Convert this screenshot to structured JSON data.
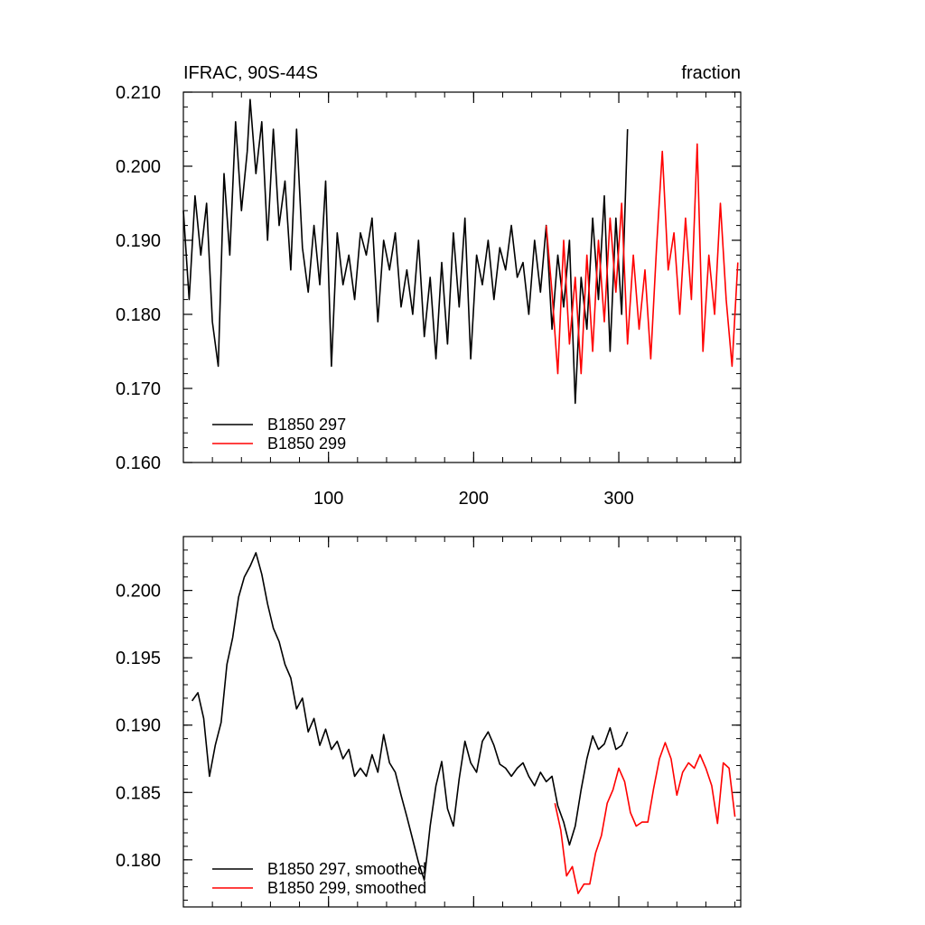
{
  "chart_data": [
    {
      "type": "line",
      "title_left": "IFRAC, 90S-44S",
      "title_right": "fraction",
      "xlim": [
        0,
        384
      ],
      "ylim": [
        0.16,
        0.21
      ],
      "xticks": [
        100,
        200,
        300
      ],
      "xtick_labels": [
        "100",
        "200",
        "300"
      ],
      "yticks": [
        0.16,
        0.17,
        0.18,
        0.19,
        0.2,
        0.21
      ],
      "ytick_labels": [
        "0.160",
        "0.170",
        "0.180",
        "0.190",
        "0.200",
        "0.210"
      ],
      "legend_placement": "lower-left",
      "grid": false,
      "series": [
        {
          "name": "B1850 297",
          "color": "#000000",
          "x": [
            0,
            4,
            8,
            12,
            16,
            20,
            24,
            28,
            32,
            36,
            40,
            44,
            46,
            50,
            54,
            58,
            62,
            66,
            70,
            74,
            78,
            82,
            86,
            90,
            94,
            98,
            102,
            106,
            110,
            114,
            118,
            122,
            126,
            130,
            134,
            138,
            142,
            146,
            150,
            154,
            158,
            162,
            166,
            170,
            174,
            178,
            182,
            186,
            190,
            194,
            198,
            202,
            206,
            210,
            214,
            218,
            222,
            226,
            230,
            234,
            238,
            242,
            246,
            250,
            254,
            258,
            262,
            266,
            270,
            274,
            278,
            282,
            286,
            290,
            294,
            298,
            302,
            306
          ],
          "values": [
            0.194,
            0.182,
            0.196,
            0.188,
            0.195,
            0.179,
            0.173,
            0.199,
            0.188,
            0.206,
            0.194,
            0.202,
            0.209,
            0.199,
            0.206,
            0.19,
            0.205,
            0.192,
            0.198,
            0.186,
            0.205,
            0.189,
            0.183,
            0.192,
            0.184,
            0.198,
            0.173,
            0.191,
            0.184,
            0.188,
            0.182,
            0.191,
            0.188,
            0.193,
            0.179,
            0.19,
            0.186,
            0.191,
            0.181,
            0.186,
            0.18,
            0.19,
            0.177,
            0.185,
            0.174,
            0.187,
            0.176,
            0.191,
            0.181,
            0.193,
            0.174,
            0.188,
            0.184,
            0.19,
            0.182,
            0.189,
            0.186,
            0.192,
            0.185,
            0.187,
            0.18,
            0.19,
            0.183,
            0.192,
            0.178,
            0.188,
            0.181,
            0.19,
            0.168,
            0.185,
            0.178,
            0.193,
            0.182,
            0.196,
            0.175,
            0.193,
            0.18,
            0.205
          ]
        },
        {
          "name": "B1850 299",
          "color": "#ff0000",
          "x": [
            250,
            254,
            258,
            262,
            266,
            270,
            274,
            278,
            282,
            286,
            290,
            294,
            298,
            302,
            306,
            310,
            314,
            318,
            322,
            326,
            330,
            334,
            338,
            342,
            346,
            350,
            354,
            358,
            362,
            366,
            370,
            374,
            378,
            382
          ],
          "values": [
            0.192,
            0.183,
            0.172,
            0.19,
            0.176,
            0.185,
            0.172,
            0.188,
            0.175,
            0.19,
            0.179,
            0.193,
            0.183,
            0.195,
            0.176,
            0.188,
            0.178,
            0.186,
            0.174,
            0.189,
            0.202,
            0.186,
            0.191,
            0.18,
            0.193,
            0.182,
            0.203,
            0.175,
            0.188,
            0.18,
            0.195,
            0.182,
            0.173,
            0.187
          ]
        }
      ]
    },
    {
      "type": "line",
      "xlim": [
        0,
        384
      ],
      "ylim": [
        0.1765,
        0.204
      ],
      "yticks": [
        0.18,
        0.185,
        0.19,
        0.195,
        0.2
      ],
      "ytick_labels": [
        "0.180",
        "0.185",
        "0.190",
        "0.195",
        "0.200"
      ],
      "legend_placement": "lower-left",
      "grid": false,
      "series": [
        {
          "name": "B1850 297, smoothed",
          "color": "#000000",
          "x": [
            6,
            10,
            14,
            18,
            22,
            26,
            30,
            34,
            38,
            42,
            46,
            50,
            54,
            58,
            62,
            66,
            70,
            74,
            78,
            82,
            86,
            90,
            94,
            98,
            102,
            106,
            110,
            114,
            118,
            122,
            126,
            130,
            134,
            138,
            142,
            146,
            150,
            154,
            158,
            162,
            166,
            170,
            174,
            178,
            182,
            186,
            190,
            194,
            198,
            202,
            206,
            210,
            214,
            218,
            222,
            226,
            230,
            234,
            238,
            242,
            246,
            250,
            254,
            258,
            262,
            266,
            270,
            274,
            278,
            282,
            286,
            290,
            294,
            298,
            302,
            306
          ],
          "values": [
            0.1918,
            0.1924,
            0.1905,
            0.1862,
            0.1885,
            0.1902,
            0.1945,
            0.1965,
            0.1995,
            0.201,
            0.2018,
            0.2028,
            0.2012,
            0.199,
            0.1972,
            0.1962,
            0.1945,
            0.1935,
            0.1912,
            0.192,
            0.1895,
            0.1905,
            0.1885,
            0.1897,
            0.1882,
            0.1888,
            0.1875,
            0.1882,
            0.1862,
            0.1868,
            0.1862,
            0.1878,
            0.1865,
            0.1893,
            0.1872,
            0.1865,
            0.1848,
            0.1832,
            0.1815,
            0.1798,
            0.1785,
            0.1825,
            0.1855,
            0.1873,
            0.1838,
            0.1825,
            0.186,
            0.1888,
            0.1872,
            0.1865,
            0.1888,
            0.1895,
            0.1885,
            0.1871,
            0.1868,
            0.1862,
            0.1868,
            0.1872,
            0.1862,
            0.1855,
            0.1865,
            0.1858,
            0.1862,
            0.184,
            0.1828,
            0.1811,
            0.1825,
            0.1852,
            0.1875,
            0.1892,
            0.1882,
            0.1886,
            0.1898,
            0.1882,
            0.1885,
            0.1895
          ]
        },
        {
          "name": "B1850 299, smoothed",
          "color": "#ff0000",
          "x": [
            256,
            260,
            264,
            268,
            272,
            276,
            280,
            284,
            288,
            292,
            296,
            300,
            304,
            308,
            312,
            316,
            320,
            324,
            328,
            332,
            336,
            340,
            344,
            348,
            352,
            356,
            360,
            364,
            368,
            372,
            376,
            380
          ],
          "values": [
            0.1842,
            0.1822,
            0.1788,
            0.1795,
            0.1775,
            0.1782,
            0.1782,
            0.1805,
            0.1818,
            0.1842,
            0.1852,
            0.1868,
            0.1858,
            0.1835,
            0.1825,
            0.1828,
            0.1828,
            0.1853,
            0.1875,
            0.1887,
            0.1875,
            0.1848,
            0.1865,
            0.1872,
            0.1868,
            0.1878,
            0.1868,
            0.1855,
            0.1827,
            0.1872,
            0.1868,
            0.1832
          ]
        }
      ]
    }
  ]
}
